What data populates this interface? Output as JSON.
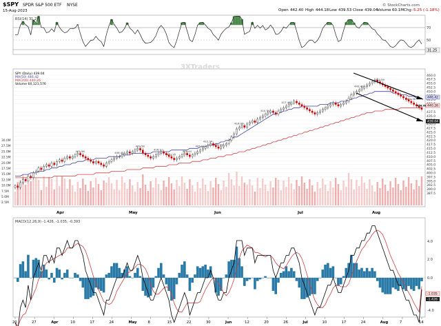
{
  "header": {
    "symbol": "$SPY",
    "name": "SPDR S&P 500 ETF",
    "exchange": "NYSE",
    "date": "15-Aug-2023",
    "open_label": "Open",
    "open": "442.40",
    "high_label": "High",
    "high": "444.18",
    "low_label": "Low",
    "low": "439.53",
    "close_label": "Close",
    "close": "439.04",
    "volume_label": "Volume",
    "volume": "60.1M",
    "chg_label": "Chg",
    "chg": "-5.25 (-1.18%)",
    "copyright": "© StockCharts.com"
  },
  "watermark": "3XTraders",
  "chart_data": [
    {
      "type": "line",
      "panel": "RSI",
      "legend": "RSI(14) 31.25",
      "series": [
        {
          "name": "RSI(14)",
          "last": 31.25
        }
      ],
      "levels": [
        70,
        50,
        30
      ],
      "ylim": [
        10,
        90
      ],
      "level_labels": [
        "70",
        "50",
        "31.25"
      ]
    },
    {
      "type": "line",
      "panel": "Price",
      "legend": [
        "SPY (Daily) 439.04",
        "MA(50) 446.42",
        "MA(200) 440.26",
        "Volume 60,121,576"
      ],
      "ylim": [
        380,
        463
      ],
      "y_ticks": [
        460,
        457.5,
        455,
        452.5,
        450,
        447.5,
        445,
        442.5,
        437.5,
        435,
        432.5,
        430,
        427.5,
        425,
        422.5,
        420,
        417.5,
        415,
        412.5,
        410,
        407.5,
        405,
        402.5,
        400,
        397.5,
        395,
        392.5,
        390,
        387.5
      ],
      "y_ticks_rendered": [
        "460.0",
        "457.5",
        "455.0",
        "452.5",
        "450.0",
        "447.5",
        "445.0",
        "442.5",
        "437.5",
        "435.0",
        "432.5",
        "430.0",
        "427.5",
        "425.0",
        "422.5",
        "420.0",
        "417.5",
        "415.0",
        "412.5",
        "410.0",
        "407.5",
        "405.0",
        "402.5",
        "400.0",
        "397.5",
        "395.0",
        "392.5",
        "390.0",
        "387.5"
      ],
      "last_labels": [
        "446.42",
        "440.26",
        "439.04"
      ],
      "volume_ticks": [
        "30.0M",
        "27.5M",
        "25.0M",
        "22.5M",
        "20.0M",
        "17.5M",
        "15.0M",
        "12.5M",
        "10.0M",
        "7.5M",
        "5.0M",
        "2.5M"
      ],
      "months": [
        "Apr",
        "May",
        "Jun",
        "Jul",
        "Aug"
      ],
      "annotations": [
        {
          "date_index": 25,
          "text": "401.96"
        },
        {
          "date_index": 40,
          "text": "406.45"
        },
        {
          "date_index": 48,
          "text": "409.58"
        },
        {
          "date_index": 55,
          "text": "416.11"
        },
        {
          "date_index": 60,
          "text": "412.95"
        },
        {
          "date_index": 66,
          "text": "409.94"
        },
        {
          "date_index": 71,
          "text": "405.04"
        },
        {
          "date_index": 74,
          "text": "412.24"
        },
        {
          "date_index": 78,
          "text": "412.03"
        },
        {
          "date_index": 86,
          "text": "418.09"
        },
        {
          "date_index": 96,
          "text": "410.54"
        },
        {
          "date_index": 104,
          "text": "417.48"
        },
        {
          "date_index": 132,
          "text": "443.40"
        },
        {
          "date_index": 140,
          "text": "432.59"
        },
        {
          "date_index": 152,
          "text": "444.30"
        },
        {
          "date_index": 170,
          "text": "456.74"
        },
        {
          "date_index": 178,
          "text": "448.93"
        },
        {
          "date_index": 184,
          "text": "457.75"
        },
        {
          "date_index": 190,
          "text": "446.92"
        }
      ],
      "series": [
        {
          "name": "SPY",
          "values": [
            392,
            391,
            394,
            396,
            395,
            398,
            397,
            400,
            401,
            403,
            402,
            404,
            405,
            404,
            406,
            405,
            407,
            408,
            407,
            409,
            410,
            409,
            410,
            411,
            412,
            411,
            410,
            409,
            408,
            407,
            406,
            407,
            406,
            405,
            404,
            406,
            407,
            408,
            409,
            410,
            410,
            411,
            412,
            413,
            412,
            413,
            414,
            415,
            414,
            412,
            411,
            410,
            409,
            410,
            411,
            412,
            413,
            412,
            411,
            410,
            409,
            408,
            409,
            410,
            411,
            412,
            411,
            410,
            411,
            412,
            413,
            414,
            415,
            416,
            417,
            418,
            417,
            416,
            415,
            416,
            417,
            418,
            420,
            422,
            424,
            427,
            428,
            429,
            428,
            430,
            431,
            432,
            431,
            433,
            434,
            435,
            436,
            437,
            438,
            437,
            436,
            438,
            439,
            440,
            441,
            442,
            443,
            444,
            443,
            442,
            441,
            440,
            439,
            438,
            437,
            436,
            437,
            438,
            439,
            440,
            441,
            442,
            443,
            442,
            441,
            442,
            443,
            444,
            446,
            448,
            449,
            450,
            451,
            452,
            453,
            454,
            455,
            456,
            457,
            456,
            455,
            454,
            453,
            452,
            451,
            450,
            449,
            448,
            447,
            446,
            445,
            444,
            443,
            442,
            441,
            440,
            439
          ]
        },
        {
          "name": "MA(50)",
          "values": [
            398,
            398,
            398,
            399,
            399,
            399,
            400,
            400,
            400,
            401,
            401,
            401,
            402,
            402,
            403,
            403,
            403,
            404,
            404,
            405,
            405,
            405,
            406,
            406,
            407,
            407,
            407,
            408,
            408,
            408,
            408,
            409,
            409,
            409,
            409,
            409,
            410,
            410,
            410,
            410,
            410,
            411,
            411,
            411,
            411,
            412,
            412,
            412,
            412,
            412,
            412,
            412,
            412,
            413,
            413,
            413,
            413,
            413,
            413,
            413,
            414,
            414,
            414,
            414,
            414,
            414,
            414,
            415,
            415,
            415,
            415,
            416,
            416,
            416,
            417,
            417,
            417,
            418,
            418,
            419,
            419,
            420,
            420,
            421,
            422,
            422,
            423,
            424,
            425,
            426,
            427,
            428,
            429,
            430,
            431,
            432,
            433,
            434,
            435,
            436,
            436,
            437,
            437,
            438,
            438,
            439,
            439,
            440,
            440,
            440,
            441,
            441,
            441,
            441,
            441,
            441,
            441,
            442,
            442,
            442,
            442,
            443,
            443,
            443,
            443,
            444,
            444,
            444,
            445,
            445,
            446,
            446,
            447,
            447,
            448,
            448,
            449,
            449,
            450,
            450,
            450,
            450,
            450,
            450,
            450,
            449,
            449,
            449,
            448,
            448,
            448,
            447,
            447,
            447,
            446,
            446,
            446
          ]
        },
        {
          "name": "MA(200)",
          "values": [
            397,
            397,
            397,
            397,
            397,
            397,
            397,
            397,
            397,
            397,
            397,
            397,
            397,
            397,
            397,
            398,
            398,
            398,
            398,
            398,
            398,
            398,
            398,
            398,
            399,
            399,
            399,
            399,
            399,
            399,
            399,
            400,
            400,
            400,
            400,
            400,
            400,
            401,
            401,
            401,
            401,
            401,
            401,
            402,
            402,
            402,
            402,
            402,
            402,
            403,
            403,
            403,
            403,
            403,
            404,
            404,
            404,
            404,
            404,
            405,
            405,
            405,
            405,
            406,
            406,
            406,
            406,
            406,
            407,
            407,
            407,
            407,
            408,
            408,
            408,
            409,
            409,
            409,
            410,
            410,
            410,
            411,
            411,
            411,
            412,
            412,
            413,
            413,
            413,
            414,
            414,
            415,
            415,
            416,
            416,
            417,
            417,
            418,
            418,
            419,
            419,
            420,
            420,
            421,
            421,
            422,
            422,
            423,
            423,
            424,
            424,
            425,
            425,
            426,
            426,
            427,
            427,
            428,
            428,
            429,
            429,
            430,
            430,
            431,
            431,
            432,
            432,
            433,
            433,
            434,
            434,
            435,
            435,
            436,
            436,
            437,
            437,
            437,
            438,
            438,
            438,
            438,
            439,
            439,
            439,
            439,
            439,
            439,
            440,
            440,
            440,
            440,
            440,
            440,
            440,
            440,
            440
          ]
        }
      ]
    },
    {
      "type": "line",
      "panel": "MACD",
      "legend": "MACD(12,26,9) -1.426, -1.035, -0.393",
      "series": [
        {
          "name": "MACD",
          "last": -1.426
        },
        {
          "name": "Signal",
          "last": -1.035
        },
        {
          "name": "Histogram",
          "last": -0.393
        }
      ],
      "right_labels": [
        "4.0",
        "2.0",
        "0.0",
        "-1.035",
        "-1.426",
        "-4.0"
      ]
    }
  ],
  "x_axis": [
    "20",
    "27",
    "Apr",
    "10",
    "17",
    "24",
    "May",
    "8",
    "15",
    "22",
    "30",
    "Jun",
    "12",
    "20",
    "26",
    "Jul",
    "10",
    "17",
    "24",
    "Aug",
    "7",
    "14"
  ]
}
